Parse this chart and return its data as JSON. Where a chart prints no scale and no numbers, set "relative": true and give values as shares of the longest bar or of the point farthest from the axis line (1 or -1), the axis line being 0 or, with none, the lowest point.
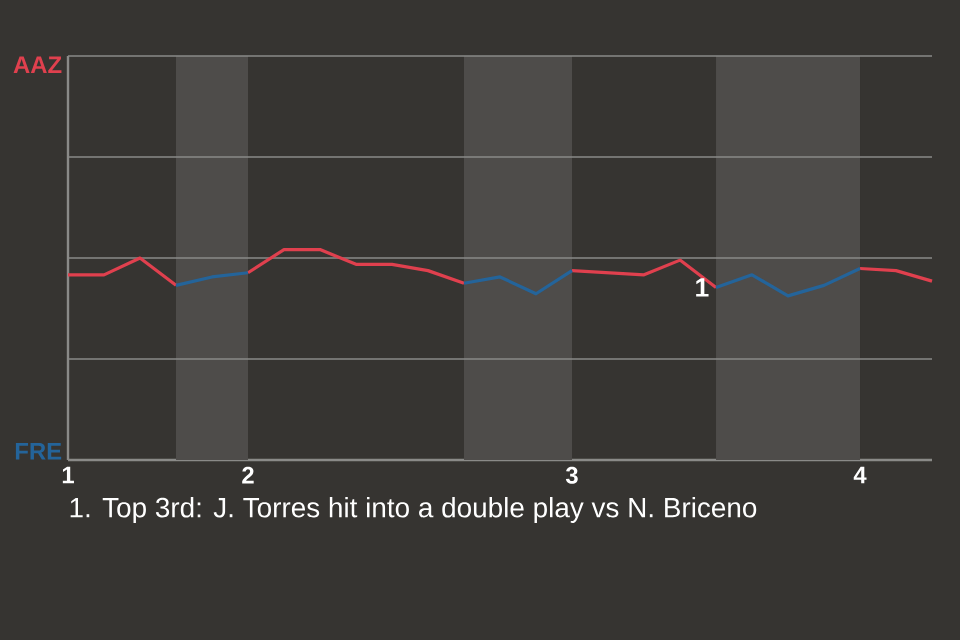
{
  "chart_data": {
    "type": "line",
    "categories": [
      "1",
      null,
      null,
      null,
      null,
      "2",
      null,
      null,
      null,
      null,
      null,
      null,
      null,
      null,
      "3",
      null,
      null,
      null,
      null,
      null,
      null,
      null,
      "4",
      null,
      null
    ],
    "series": [
      {
        "color": "#e0404e",
        "values": [
          0.88,
          0.88,
          0.96,
          0.83,
          null,
          0.89,
          1,
          1,
          0.93,
          0.93,
          0.9,
          0.84,
          null,
          null,
          0.9,
          0.89,
          0.88,
          0.95,
          0.82,
          null,
          null,
          null,
          0.91,
          0.9,
          0.85
        ]
      },
      {
        "color": "#24649a",
        "values": [
          null,
          null,
          null,
          0.83,
          0.87,
          0.89,
          null,
          null,
          null,
          null,
          null,
          0.84,
          0.87,
          0.79,
          0.9,
          null,
          null,
          null,
          0.82,
          0.88,
          0.78,
          0.83,
          0.91,
          null,
          null
        ]
      }
    ],
    "relative": true,
    "ref_lines": [
      {
        "axis": "y",
        "value": 0.48,
        "color": "#8a8a88"
      },
      {
        "axis": "y",
        "value": 0.96,
        "color": "#8a8a88"
      },
      {
        "axis": "y",
        "value": 1.44,
        "color": "#8a8a88"
      }
    ],
    "marker": "none",
    "line_style": "solid",
    "annotations": [
      "AAZ",
      "FRE",
      {
        "text": "1",
        "y": 0.82
      },
      "1. Top 3rd: J. Torres hit into a double play vs N. Briceno"
    ]
  }
}
